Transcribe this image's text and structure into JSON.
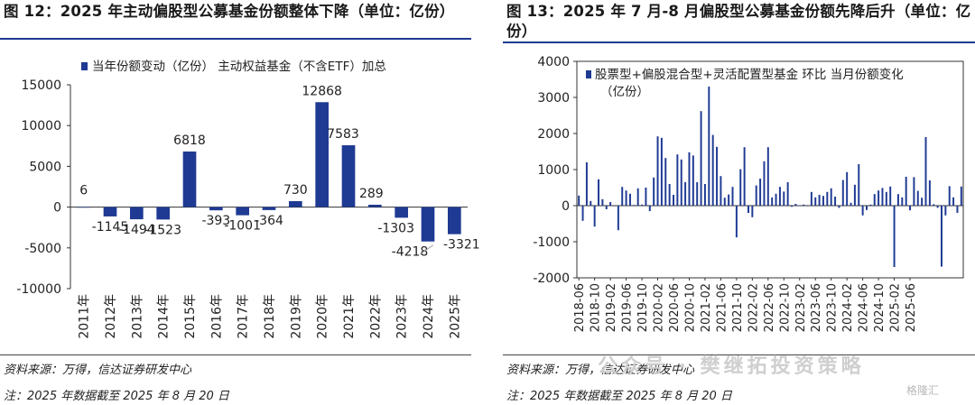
{
  "left": {
    "title": "图 12：2025 年主动偏股型公募基金份额整体下降（单位：亿份）",
    "source": "资料来源：万得，信达证券研发中心",
    "note": "注：2025 年数据截至 2025 年 8 月 20 日",
    "chart_data": {
      "type": "bar",
      "legend": "当年份额变动（亿份）  主动权益基金（不含ETF）加总",
      "legend_position": "top",
      "categories": [
        "2011年",
        "2012年",
        "2013年",
        "2014年",
        "2015年",
        "2016年",
        "2017年",
        "2018年",
        "2019年",
        "2020年",
        "2021年",
        "2022年",
        "2023年",
        "2024年",
        "2025年"
      ],
      "values": [
        6,
        -1145,
        -1494,
        -1523,
        6818,
        -393,
        -1001,
        -364,
        730,
        12868,
        7583,
        289,
        -1303,
        -4218,
        -3321
      ],
      "value_labels": [
        "6",
        "-1145",
        "-1494",
        "-1523",
        "6818",
        "-393",
        "-1001",
        "-364",
        "730",
        "12868",
        "7583",
        "289",
        "-1303",
        "-4218",
        "-3321"
      ],
      "ylim": [
        -10000,
        15000
      ],
      "yticks": [
        -10000,
        -5000,
        0,
        5000,
        10000,
        15000
      ],
      "ytick_labels": [
        "-10000",
        "-5000",
        "0",
        "5000",
        "10000",
        "15000"
      ],
      "bar_color": "#1f3a93",
      "grid": false
    }
  },
  "right": {
    "title": "图 13：2025 年 7 月-8 月偏股型公募基金份额先降后升（单位：亿份）",
    "source": "资料来源：万得，信达证券研发中心",
    "note": "注：2025 年数据截至 2025 年 8 月 20 日",
    "watermark": "公众号 · 樊继拓投资策略",
    "logo": "格隆汇",
    "chart_data": {
      "type": "bar",
      "legend": "股票型+偏股混合型+灵活配置型基金 环比 当月份额变化（亿份）",
      "legend_position": "top-left",
      "x_start": "2018-06",
      "x_tick_labels": [
        "2018-06",
        "2018-10",
        "2019-02",
        "2019-06",
        "2019-10",
        "2020-02",
        "2020-06",
        "2020-10",
        "2021-02",
        "2021-06",
        "2021-10",
        "2022-02",
        "2022-06",
        "2022-10",
        "2023-02",
        "2023-06",
        "2023-10",
        "2024-02",
        "2024-06",
        "2024-10",
        "2025-02",
        "2025-06"
      ],
      "values": [
        280,
        -420,
        1200,
        130,
        -580,
        730,
        180,
        -100,
        100,
        0,
        -680,
        520,
        420,
        330,
        20,
        480,
        30,
        500,
        -150,
        780,
        1920,
        1880,
        1320,
        600,
        300,
        1420,
        1280,
        650,
        1480,
        1390,
        650,
        2620,
        600,
        3300,
        1960,
        1630,
        820,
        220,
        310,
        520,
        -880,
        1010,
        1620,
        -200,
        -320,
        560,
        750,
        1230,
        1620,
        230,
        330,
        520,
        390,
        650,
        -30,
        50,
        10,
        30,
        -10,
        380,
        230,
        300,
        270,
        380,
        480,
        250,
        -60,
        710,
        930,
        80,
        580,
        1150,
        -270,
        -120,
        30,
        320,
        420,
        490,
        380,
        530,
        -1700,
        320,
        230,
        800,
        -130,
        790,
        410,
        220,
        1900,
        700,
        40,
        -60,
        -1690,
        -270,
        540,
        230,
        -200,
        530
      ],
      "ylim": [
        -2000,
        4000
      ],
      "yticks": [
        -2000,
        -1000,
        0,
        1000,
        2000,
        3000,
        4000
      ],
      "ytick_labels": [
        "-2000",
        "-1000",
        "0",
        "1000",
        "2000",
        "3000",
        "4000"
      ],
      "bar_color": "#1f3a93",
      "grid": false
    }
  }
}
